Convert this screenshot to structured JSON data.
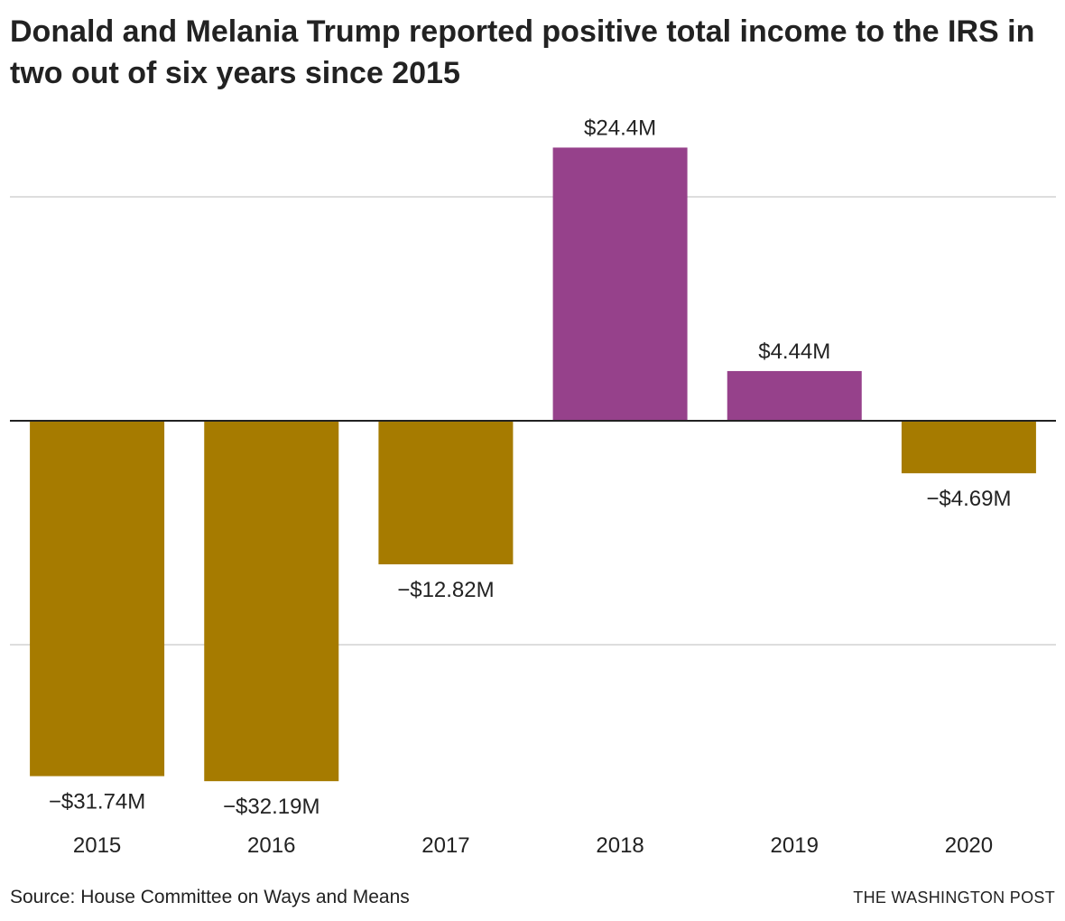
{
  "title": "Donald and Melania Trump reported positive total income to the IRS in two out of six years since 2015",
  "source": "Source: House Committee on Ways and Means",
  "credit": "THE WASHINGTON POST",
  "colors": {
    "positive": "#96418b",
    "negative": "#a67b00",
    "gridline": "#dddddd",
    "zero_line": "#222222",
    "text": "#222222"
  },
  "chart_data": {
    "type": "bar",
    "title": "",
    "xlabel": "",
    "ylabel": "",
    "categories": [
      "2015",
      "2016",
      "2017",
      "2018",
      "2019",
      "2020"
    ],
    "values": [
      -31.74,
      -32.19,
      -12.82,
      24.4,
      4.44,
      -4.69
    ],
    "value_labels": [
      "−$31.74M",
      "−$32.19M",
      "−$12.82M",
      "$24.4M",
      "$4.44M",
      "−$4.69M"
    ],
    "units": "millions of dollars",
    "ylim": [
      -35,
      27
    ],
    "gridlines": [
      20,
      -20
    ],
    "grid": true,
    "legend": "none"
  }
}
